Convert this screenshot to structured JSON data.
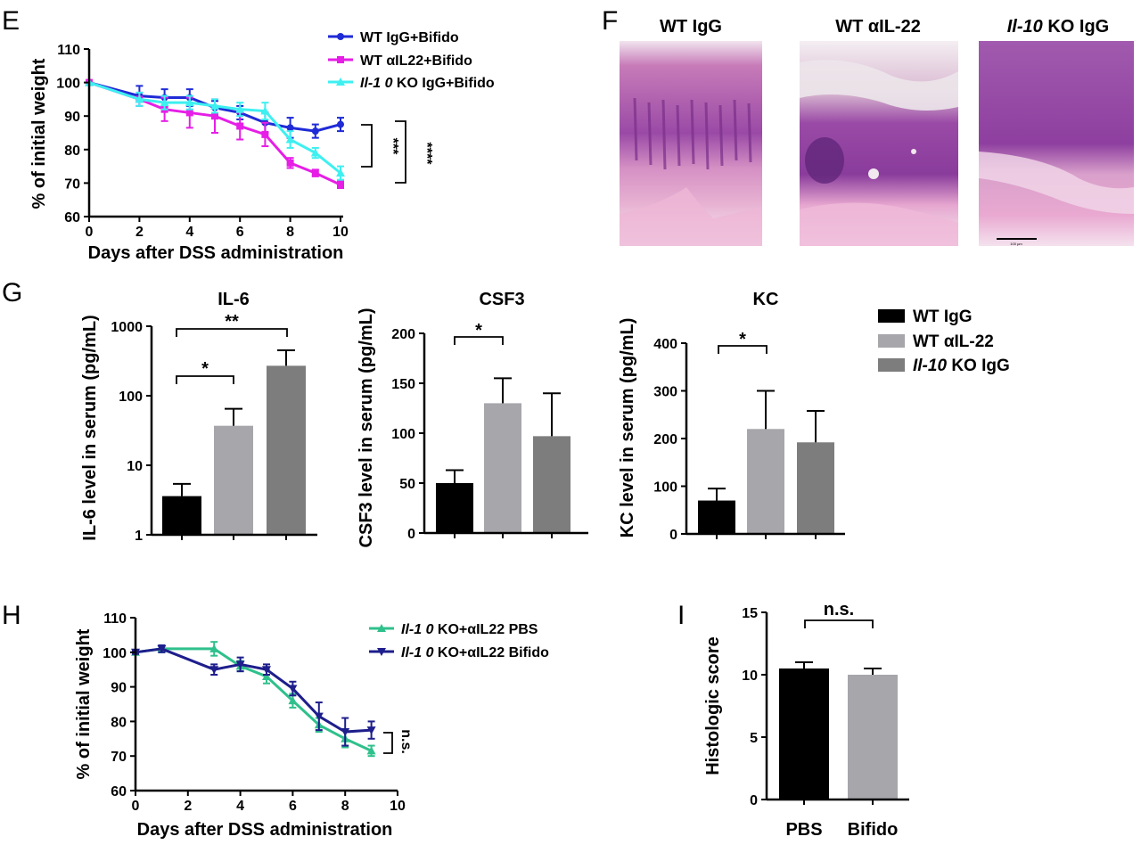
{
  "panel_letters": {
    "E": "E",
    "F": "F",
    "G": "G",
    "H": "H",
    "I": "I"
  },
  "colors": {
    "wt_igg_bifido": "#1f2bd6",
    "wt_ail22_bifido": "#e61ee6",
    "il10ko_igg_bifido": "#3ef0f0",
    "bar_black": "#000000",
    "bar_light": "#a6a6ab",
    "bar_dark": "#7d7d7d",
    "pbs_line": "#2fc08c",
    "bifido_line": "#1e1e8c",
    "pbs_bar": "#000000",
    "bifido_bar": "#a6a6ab",
    "histo_pink": "#e3a8d0",
    "histo_purple": "#8e3f9f"
  },
  "histology": {
    "titles": [
      "WT IgG",
      "WT αIL-22",
      "KO IgG"
    ],
    "ko_italic_prefix": "Il-10",
    "scale_bar_text": "100 µm"
  },
  "significance": {
    "E_a": "***",
    "E_b": "****",
    "il6_a": "*",
    "il6_b": "**",
    "csf3": "*",
    "kc": "*",
    "H": "n.s.",
    "I": "n.s."
  },
  "g_legend": {
    "entries": [
      "WT IgG",
      "WT αIL-22",
      "KO IgG"
    ],
    "ko_italic_prefix": "Il-10"
  },
  "chart_data": [
    {
      "id": "E",
      "type": "line",
      "xlabel": "Days after DSS administration",
      "ylabel": "% of initial weight",
      "xlim": [
        0,
        10
      ],
      "ylim": [
        60,
        110
      ],
      "xticks": [
        0,
        2,
        4,
        6,
        8,
        10
      ],
      "yticks": [
        60,
        70,
        80,
        90,
        100,
        110
      ],
      "x": [
        0,
        2,
        3,
        4,
        5,
        6,
        7,
        8,
        9,
        10
      ],
      "series": [
        {
          "name": "WT IgG+Bifido",
          "color_key": "wt_igg_bifido",
          "marker": "circle",
          "values": [
            100,
            96,
            95.5,
            95.5,
            92.5,
            91,
            88,
            86.5,
            85.5,
            87.5
          ],
          "err": [
            0,
            3,
            2.5,
            2.5,
            2,
            2,
            3,
            3,
            2,
            2
          ]
        },
        {
          "name": "WT αIL22+Bifido",
          "color_key": "wt_ail22_bifido",
          "marker": "square",
          "values": [
            100,
            95,
            92,
            91,
            90,
            87,
            84.5,
            76,
            73,
            69.5
          ],
          "err": [
            0,
            2,
            3.5,
            4.5,
            5,
            4,
            3.5,
            1.5,
            1,
            1
          ]
        },
        {
          "name": "KO IgG+Bifido",
          "italic_prefix": "Il-1 0",
          "color_key": "il10ko_igg_bifido",
          "marker": "triangle",
          "values": [
            100,
            95,
            94,
            94,
            93,
            92,
            91.5,
            83,
            79,
            73
          ],
          "err": [
            0,
            2,
            2,
            2,
            2,
            2,
            2.5,
            2.5,
            1.5,
            2
          ]
        }
      ]
    },
    {
      "id": "G-IL6",
      "type": "bar",
      "title": "IL-6",
      "ylabel": "IL-6 level in serum (pg/mL)",
      "yscale": "log",
      "ylim": [
        1,
        1000
      ],
      "yticks": [
        1,
        10,
        100,
        1000
      ],
      "categories": [
        "WT IgG",
        "WT αIL-22",
        "Il-10 KO IgG"
      ],
      "values": [
        3.6,
        37,
        270
      ],
      "err_upper": [
        5.4,
        65,
        450
      ]
    },
    {
      "id": "G-CSF3",
      "type": "bar",
      "title": "CSF3",
      "ylabel": "CSF3 level in serum (pg/mL)",
      "ylim": [
        0,
        200
      ],
      "yticks": [
        0,
        50,
        100,
        150,
        200
      ],
      "categories": [
        "WT IgG",
        "WT αIL-22",
        "Il-10 KO IgG"
      ],
      "values": [
        50,
        130,
        97
      ],
      "err_upper": [
        63,
        155,
        140
      ]
    },
    {
      "id": "G-KC",
      "type": "bar",
      "title": "KC",
      "ylabel": "KC level in serum (pg/mL)",
      "ylim": [
        0,
        400
      ],
      "yticks": [
        0,
        100,
        200,
        300,
        400
      ],
      "categories": [
        "WT IgG",
        "WT αIL-22",
        "Il-10 KO IgG"
      ],
      "values": [
        70,
        220,
        192
      ],
      "err_upper": [
        95,
        300,
        258
      ]
    },
    {
      "id": "H",
      "type": "line",
      "xlabel": "Days after DSS administration",
      "ylabel": "% of initial weight",
      "xlim": [
        0,
        10
      ],
      "ylim": [
        60,
        110
      ],
      "xticks": [
        0,
        2,
        4,
        6,
        8,
        10
      ],
      "yticks": [
        60,
        70,
        80,
        90,
        100,
        110
      ],
      "x": [
        0,
        1,
        3,
        4,
        5,
        6,
        7,
        8,
        9
      ],
      "series": [
        {
          "name": "KO+αIL22 PBS",
          "italic_prefix": "Il-1 0",
          "color_key": "pbs_line",
          "marker": "triangle",
          "values": [
            100,
            101,
            101,
            96,
            93,
            86,
            79,
            75,
            71.5
          ],
          "err": [
            0.5,
            1,
            2,
            1.5,
            2,
            2,
            2,
            2.5,
            1.5
          ]
        },
        {
          "name": "KO+αIL22 Bifido",
          "italic_prefix": "Il-1 0",
          "color_key": "bifido_line",
          "marker": "triangle-down",
          "values": [
            100,
            101,
            95,
            96.5,
            95,
            89.5,
            81.5,
            77,
            77.5
          ],
          "err": [
            0.5,
            1,
            1.5,
            2,
            1.5,
            2,
            4,
            4,
            2.5
          ]
        }
      ]
    },
    {
      "id": "I",
      "type": "bar",
      "ylabel": "Histologic score",
      "ylim": [
        0,
        15
      ],
      "yticks": [
        0,
        5,
        10,
        15
      ],
      "categories": [
        "PBS",
        "Bifido"
      ],
      "values": [
        10.5,
        10
      ],
      "err_upper": [
        11,
        10.5
      ]
    }
  ]
}
